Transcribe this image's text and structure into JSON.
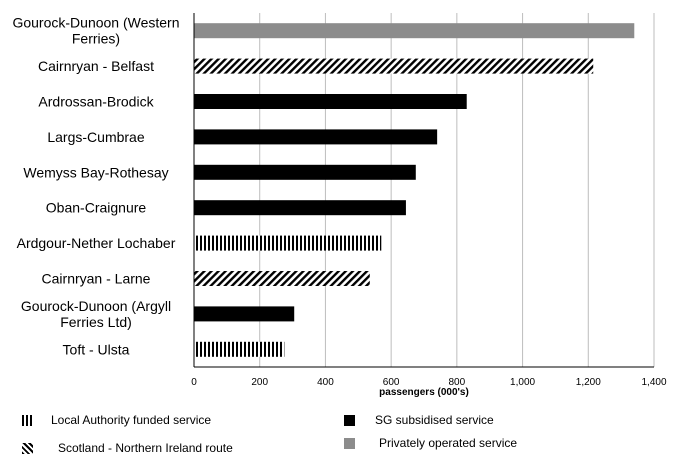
{
  "chart_data": {
    "type": "bar",
    "orientation": "horizontal",
    "title": "",
    "xlabel": "passengers (000's)",
    "ylabel": "",
    "xlim": [
      0,
      1400
    ],
    "xticks": [
      0,
      200,
      400,
      600,
      800,
      1000,
      1200,
      1400
    ],
    "xtick_labels": [
      "0",
      "200",
      "400",
      "600",
      "800",
      "1,000",
      "1,200",
      "1,400"
    ],
    "grid": "vertical",
    "legend_position": "bottom",
    "categories": [
      [
        "Gourock-Dunoon (Western",
        "Ferries)"
      ],
      [
        "Cairnryan - Belfast"
      ],
      [
        "Ardrossan-Brodick"
      ],
      [
        "Largs-Cumbrae"
      ],
      [
        "Wemyss Bay-Rothesay"
      ],
      [
        "Oban-Craignure"
      ],
      [
        "Ardgour-Nether Lochaber"
      ],
      [
        "Cairnryan - Larne"
      ],
      [
        "Gourock-Dunoon (Argyll",
        "Ferries Ltd)"
      ],
      [
        "Toft - Ulsta"
      ]
    ],
    "values": [
      1340,
      1215,
      830,
      740,
      675,
      645,
      570,
      535,
      305,
      275
    ],
    "service_types": [
      "private",
      "ni",
      "sg",
      "sg",
      "sg",
      "sg",
      "la",
      "ni",
      "sg",
      "la"
    ],
    "legend": [
      {
        "key": "la",
        "label": "Local Authority funded service",
        "pattern": "vertical-stripes",
        "color": "#000000"
      },
      {
        "key": "sg",
        "label": "SG subsidised service",
        "pattern": "solid",
        "color": "#000000"
      },
      {
        "key": "ni",
        "label": "Scotland - Northern Ireland route",
        "pattern": "diagonal-stripes",
        "color": "#000000"
      },
      {
        "key": "private",
        "label": "Privately operated service",
        "pattern": "solid",
        "color": "#8c8c8c"
      }
    ]
  }
}
